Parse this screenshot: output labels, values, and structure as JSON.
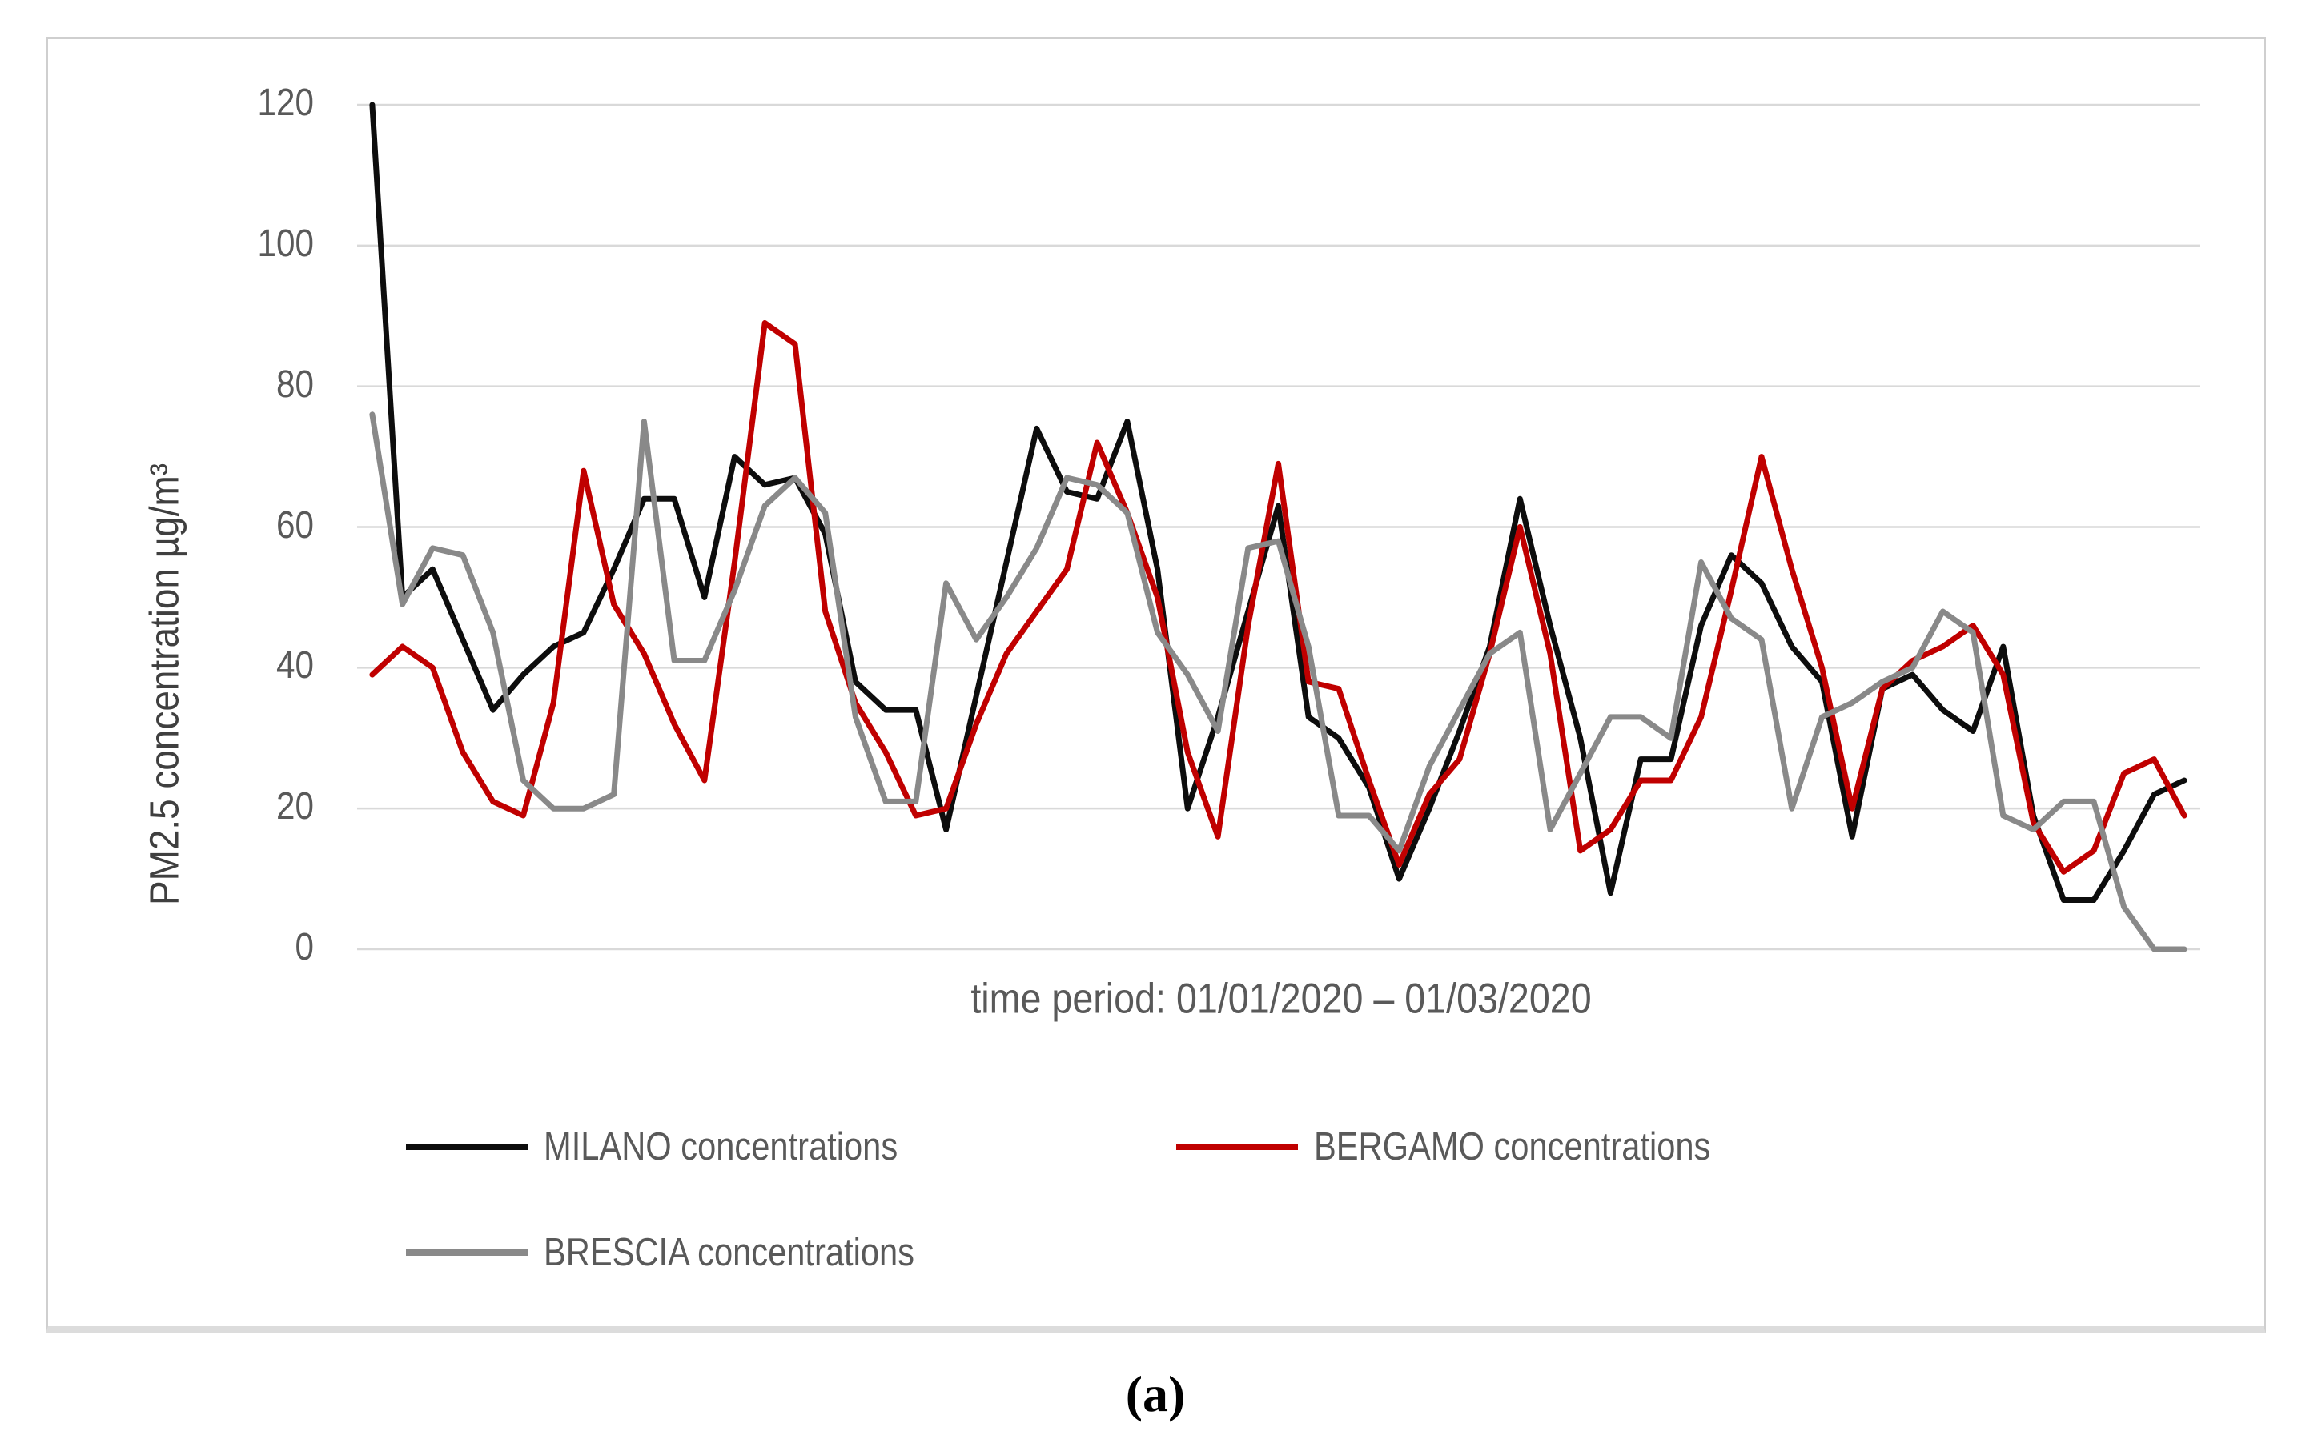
{
  "figure": {
    "caption": "(a)"
  },
  "chart_data": {
    "type": "line",
    "title": "",
    "xlabel": "time period: 01/01/2020 – 01/03/2020",
    "ylabel": "PM2.5 concentration µg/m³",
    "x_start": "01/01/2020",
    "x_end": "01/03/2020",
    "n_points": 61,
    "ylim": [
      0,
      120
    ],
    "yticks": [
      120,
      100,
      80,
      60,
      40,
      20,
      0
    ],
    "grid": "horizontal",
    "gridline_color": "#d9d9d9",
    "legend_position": "below-plot-left",
    "series": [
      {
        "name": "MILANO concentrations",
        "color": "#0d0d0d",
        "values": [
          120,
          50,
          54,
          44,
          34,
          39,
          43,
          45,
          54,
          64,
          64,
          50,
          70,
          66,
          67,
          59,
          38,
          34,
          34,
          17,
          36,
          55,
          74,
          65,
          64,
          75,
          54,
          20,
          33,
          48,
          63,
          33,
          30,
          23,
          10,
          20,
          31,
          43,
          64,
          46,
          30,
          8,
          27,
          27,
          46,
          56,
          52,
          43,
          38,
          16,
          37,
          39,
          34,
          31,
          43,
          19,
          7,
          7,
          14,
          22,
          24
        ]
      },
      {
        "name": "BERGAMO concentrations",
        "color": "#c00000",
        "values": [
          39,
          43,
          40,
          28,
          21,
          19,
          35,
          68,
          49,
          42,
          32,
          24,
          55,
          89,
          86,
          48,
          35,
          28,
          19,
          20,
          32,
          42,
          48,
          54,
          72,
          62,
          50,
          28,
          16,
          46,
          69,
          38,
          37,
          24,
          12,
          22,
          27,
          42,
          60,
          42,
          14,
          17,
          24,
          24,
          33,
          51,
          70,
          54,
          40,
          20,
          37,
          41,
          43,
          46,
          39,
          18,
          11,
          14,
          25,
          27,
          19
        ]
      },
      {
        "name": "BRESCIA concentrations",
        "color": "#898989",
        "values": [
          76,
          49,
          57,
          56,
          45,
          24,
          20,
          20,
          22,
          75,
          41,
          41,
          51,
          63,
          67,
          62,
          33,
          21,
          21,
          52,
          44,
          50,
          57,
          67,
          66,
          62,
          45,
          39,
          31,
          57,
          58,
          43,
          19,
          19,
          14,
          26,
          34,
          42,
          45,
          17,
          25,
          33,
          33,
          30,
          55,
          47,
          44,
          20,
          33,
          35,
          38,
          40,
          48,
          45,
          19,
          17,
          21,
          21,
          6,
          0,
          0
        ]
      }
    ]
  }
}
